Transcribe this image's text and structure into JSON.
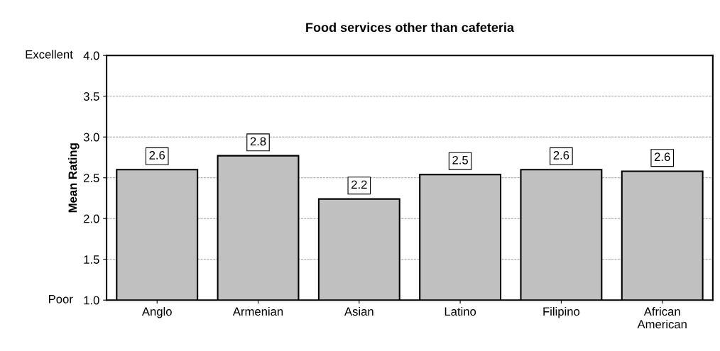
{
  "chart_data": {
    "type": "bar",
    "title": "Food services other than cafeteria",
    "ylabel": "Mean Rating",
    "categories": [
      "Anglo",
      "Armenian",
      "Asian",
      "Latino",
      "Filipino",
      "African\nAmerican"
    ],
    "values": [
      2.6,
      2.77,
      2.24,
      2.54,
      2.6,
      2.58
    ],
    "value_labels": [
      "2.6",
      "2.8",
      "2.2",
      "2.5",
      "2.6",
      "2.6"
    ],
    "color": "#c0c0c0",
    "ylim": [
      1.0,
      4.0
    ],
    "yticks": [
      {
        "value": 1.0,
        "label": "1.0"
      },
      {
        "value": 1.5,
        "label": "1.5"
      },
      {
        "value": 2.0,
        "label": "2.0"
      },
      {
        "value": 2.5,
        "label": "2.5"
      },
      {
        "value": 3.0,
        "label": "3.0"
      },
      {
        "value": 3.5,
        "label": "3.5"
      },
      {
        "value": 4.0,
        "label": "4.0"
      }
    ],
    "annotations": [
      "Excellent",
      "Poor"
    ],
    "grid": "y",
    "legend": false
  }
}
